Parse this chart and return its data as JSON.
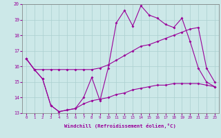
{
  "xlabel": "Windchill (Refroidissement éolien,°C)",
  "background_color": "#cce8e8",
  "grid_color": "#aacfcf",
  "line_color": "#990099",
  "x_hours": [
    0,
    1,
    2,
    3,
    4,
    5,
    6,
    7,
    8,
    9,
    10,
    11,
    12,
    13,
    14,
    15,
    16,
    17,
    18,
    19,
    20,
    21,
    22,
    23
  ],
  "y_temp": [
    16.5,
    15.8,
    15.2,
    13.5,
    13.1,
    13.2,
    13.3,
    14.0,
    15.3,
    13.8,
    15.9,
    18.8,
    19.6,
    18.6,
    19.9,
    19.3,
    19.1,
    18.7,
    18.5,
    19.1,
    17.6,
    15.9,
    15.0,
    14.7
  ],
  "y_upper": [
    16.5,
    15.8,
    15.8,
    15.8,
    15.8,
    15.8,
    15.8,
    15.8,
    15.8,
    15.9,
    16.1,
    16.4,
    16.7,
    17.0,
    17.3,
    17.4,
    17.6,
    17.8,
    18.0,
    18.2,
    18.4,
    18.5,
    15.9,
    15.0
  ],
  "y_lower": [
    16.5,
    15.8,
    15.2,
    13.5,
    13.1,
    13.2,
    13.3,
    13.6,
    13.8,
    13.9,
    14.0,
    14.2,
    14.3,
    14.5,
    14.6,
    14.7,
    14.8,
    14.8,
    14.9,
    14.9,
    14.9,
    14.9,
    14.8,
    14.7
  ],
  "ylim": [
    13,
    20
  ],
  "xlim": [
    -0.5,
    23.5
  ],
  "yticks": [
    13,
    14,
    15,
    16,
    17,
    18,
    19,
    20
  ],
  "xticks": [
    0,
    1,
    2,
    3,
    4,
    5,
    6,
    7,
    8,
    9,
    10,
    11,
    12,
    13,
    14,
    15,
    16,
    17,
    18,
    19,
    20,
    21,
    22,
    23
  ]
}
